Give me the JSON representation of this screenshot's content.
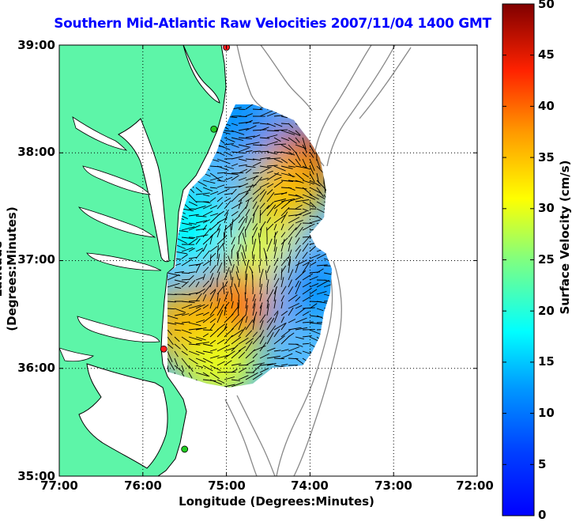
{
  "map": {
    "title": "Southern Mid-Atlantic Raw Velocities 2007/11/04 1400 GMT",
    "xlabel": "Longitude (Degrees:Minutes)",
    "ylabel": "Latitude (Degrees:Minutes)",
    "x_ticks": [
      "77:00",
      "76:00",
      "75:00",
      "74:00",
      "73:00",
      "72:00"
    ],
    "y_ticks": [
      "39:00",
      "38:00",
      "37:00",
      "36:00",
      "35:00"
    ],
    "grid": "dotted",
    "land_color": "#5df5a8",
    "ocean_color": "#ffffff"
  },
  "colorbar": {
    "label": "Surface Velocity (cm/s)",
    "ticks": [
      "50",
      "45",
      "40",
      "35",
      "30",
      "25",
      "20",
      "15",
      "10",
      "5",
      "0"
    ],
    "range": [
      0,
      50
    ],
    "colormap": "jet"
  },
  "chart_data": {
    "type": "heatmap",
    "title": "Southern Mid-Atlantic Raw Velocities 2007/11/04 1400 GMT",
    "xlabel": "Longitude (Degrees:Minutes)",
    "ylabel": "Latitude (Degrees:Minutes)",
    "x_range": [
      -77,
      -72
    ],
    "y_range": [
      35,
      39
    ],
    "z_label": "Surface Velocity (cm/s)",
    "z_range": [
      0,
      50
    ],
    "regions": [
      {
        "lon": -74.1,
        "lat": 37.9,
        "speed": 45
      },
      {
        "lon": -74.3,
        "lat": 37.65,
        "speed": 35
      },
      {
        "lon": -74.8,
        "lat": 38.3,
        "speed": 12
      },
      {
        "lon": -74.5,
        "lat": 37.05,
        "speed": 30
      },
      {
        "lon": -74.9,
        "lat": 36.55,
        "speed": 40
      },
      {
        "lon": -75.5,
        "lat": 36.4,
        "speed": 36
      },
      {
        "lon": -74.0,
        "lat": 36.8,
        "speed": 12
      },
      {
        "lon": -75.4,
        "lat": 37.3,
        "speed": 18
      },
      {
        "lon": -75.1,
        "lat": 36.05,
        "speed": 30
      }
    ]
  },
  "stations": [
    {
      "lon": -75.0,
      "lat": 38.98,
      "color": "#ff2020"
    },
    {
      "lon": -75.15,
      "lat": 38.22,
      "color": "#22cc22"
    },
    {
      "lon": -75.75,
      "lat": 36.18,
      "color": "#ff2020"
    },
    {
      "lon": -75.5,
      "lat": 35.25,
      "color": "#22cc22"
    }
  ]
}
